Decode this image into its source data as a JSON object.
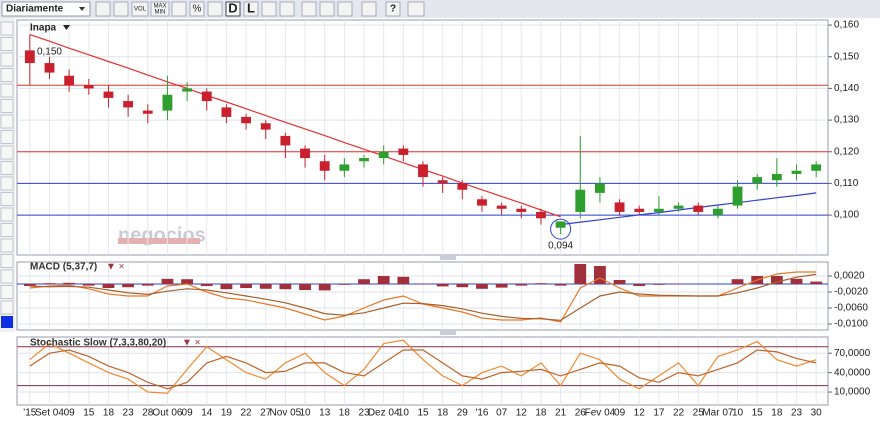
{
  "toolbar": {
    "period": "Diariamente",
    "buttons": [
      "VOL",
      "MAX",
      "MIN",
      "D",
      "L"
    ]
  },
  "watermark": "negocios",
  "chart_data": [
    {
      "type": "candlestick",
      "title": "Inapa",
      "categories": [
        "'15",
        "Set 04",
        "09",
        "15",
        "18",
        "23",
        "28",
        "Out 06",
        "09",
        "14",
        "19",
        "22",
        "27",
        "Nov 05",
        "10",
        "13",
        "18",
        "23",
        "Dez 04",
        "10",
        "15",
        "18",
        "29",
        "'16",
        "07",
        "12",
        "18",
        "21",
        "26",
        "Fev 04",
        "09",
        "12",
        "17",
        "22",
        "25",
        "Mar 07",
        "10",
        "15",
        "18",
        "23",
        "30"
      ],
      "open": [
        0.152,
        0.148,
        0.144,
        0.141,
        0.139,
        0.136,
        0.133,
        0.133,
        0.139,
        0.139,
        0.134,
        0.131,
        0.129,
        0.125,
        0.121,
        0.117,
        0.114,
        0.117,
        0.118,
        0.121,
        0.116,
        0.111,
        0.11,
        0.105,
        0.103,
        0.102,
        0.101,
        0.096,
        0.101,
        0.107,
        0.104,
        0.102,
        0.101,
        0.102,
        0.103,
        0.1,
        0.103,
        0.11,
        0.111,
        0.113,
        0.114
      ],
      "high": [
        0.157,
        0.15,
        0.146,
        0.143,
        0.141,
        0.138,
        0.135,
        0.144,
        0.142,
        0.14,
        0.135,
        0.132,
        0.13,
        0.126,
        0.122,
        0.119,
        0.118,
        0.119,
        0.122,
        0.122,
        0.117,
        0.112,
        0.111,
        0.106,
        0.104,
        0.103,
        0.102,
        0.098,
        0.125,
        0.112,
        0.105,
        0.103,
        0.106,
        0.104,
        0.104,
        0.103,
        0.111,
        0.113,
        0.118,
        0.116,
        0.117
      ],
      "low": [
        0.141,
        0.143,
        0.139,
        0.138,
        0.134,
        0.131,
        0.129,
        0.13,
        0.136,
        0.133,
        0.129,
        0.127,
        0.124,
        0.118,
        0.115,
        0.111,
        0.112,
        0.115,
        0.116,
        0.117,
        0.109,
        0.107,
        0.105,
        0.101,
        0.1,
        0.099,
        0.097,
        0.094,
        0.099,
        0.104,
        0.1,
        0.1,
        0.1,
        0.101,
        0.1,
        0.099,
        0.102,
        0.108,
        0.109,
        0.111,
        0.112
      ],
      "close": [
        0.148,
        0.145,
        0.141,
        0.14,
        0.137,
        0.134,
        0.132,
        0.138,
        0.14,
        0.136,
        0.131,
        0.129,
        0.127,
        0.122,
        0.118,
        0.114,
        0.116,
        0.118,
        0.12,
        0.119,
        0.112,
        0.11,
        0.108,
        0.103,
        0.102,
        0.101,
        0.099,
        0.098,
        0.108,
        0.11,
        0.101,
        0.101,
        0.102,
        0.103,
        0.101,
        0.102,
        0.109,
        0.112,
        0.113,
        0.114,
        0.116
      ],
      "up_color": "#2e9e2e",
      "down_color": "#c8202c",
      "trendlines": [
        {
          "color": "#e83030",
          "values": [
            0.157,
            0.1549,
            0.1527,
            0.1506,
            0.1485,
            0.1464,
            0.1442,
            0.1421,
            0.14,
            0.1378,
            0.1357,
            0.1336,
            0.1314,
            0.1293,
            0.1272,
            0.1251,
            0.1229,
            0.1208,
            0.1187,
            0.1165,
            0.1144,
            0.1123,
            0.1101,
            0.108,
            0.1059,
            0.1038,
            0.1016,
            0.0995,
            null,
            null,
            null,
            null,
            null,
            null,
            null,
            null,
            null,
            null,
            null,
            null,
            null
          ]
        },
        {
          "color": "#3040d0",
          "values": [
            null,
            null,
            null,
            null,
            null,
            null,
            null,
            null,
            null,
            null,
            null,
            null,
            null,
            null,
            null,
            null,
            null,
            null,
            null,
            null,
            null,
            null,
            null,
            null,
            null,
            null,
            null,
            0.097,
            0.0978,
            0.0985,
            0.0993,
            0.1001,
            0.1008,
            0.1016,
            0.1024,
            0.1032,
            0.1039,
            0.1047,
            0.1055,
            0.1062,
            0.107
          ]
        }
      ],
      "levels": [
        {
          "value": 0.141,
          "color": "#e83030"
        },
        {
          "value": 0.12,
          "color": "#e83030"
        },
        {
          "value": 0.11,
          "color": "#3040d0"
        },
        {
          "value": 0.1,
          "color": "#3040d0"
        }
      ],
      "annotations": [
        {
          "value": 0.15,
          "label": "0,150"
        },
        {
          "value": 0.094,
          "label": "0,094"
        }
      ],
      "ylim": [
        0.0874,
        0.1616
      ],
      "yticks": [
        {
          "value": 0.16,
          "label": "0,160"
        },
        {
          "value": 0.15,
          "label": "0,150"
        },
        {
          "value": 0.14,
          "label": "0,140"
        },
        {
          "value": 0.13,
          "label": "0,130"
        },
        {
          "value": 0.12,
          "label": "0,120"
        },
        {
          "value": 0.11,
          "label": "0,110"
        },
        {
          "value": 0.1,
          "label": "0,100"
        }
      ],
      "grid": true
    },
    {
      "type": "macd",
      "title": "MACD (5,37,7)",
      "histogram": [
        -0.0005,
        0.0002,
        0.0003,
        -0.0004,
        -0.001,
        -0.0008,
        -0.0004,
        0.0013,
        0.0012,
        -0.0005,
        -0.0013,
        -0.001,
        -0.0012,
        -0.0013,
        -0.0015,
        -0.0016,
        -0.0002,
        0.0012,
        0.002,
        0.0018,
        -0.0001,
        -0.0006,
        -0.0008,
        -0.0012,
        -0.0009,
        -0.0004,
        0.0002,
        -0.0004,
        0.005,
        0.0045,
        0.001,
        -0.0005,
        -0.0002,
        -0.0001,
        0,
        0,
        0.0012,
        0.002,
        0.002,
        0.0013,
        0.0006
      ],
      "histogram_color": "#a0303c",
      "zero_color": "#3040d0",
      "series": [
        {
          "color": "#e8782a",
          "values": [
            -0.001,
            -0.0005,
            -0.0003,
            -0.0012,
            -0.0025,
            -0.003,
            -0.003,
            -0.0005,
            0.0,
            -0.002,
            -0.0035,
            -0.004,
            -0.005,
            -0.006,
            -0.0075,
            -0.009,
            -0.008,
            -0.006,
            -0.004,
            -0.003,
            -0.005,
            -0.006,
            -0.007,
            -0.0085,
            -0.009,
            -0.009,
            -0.0085,
            -0.0095,
            -0.001,
            0.0015,
            -0.001,
            -0.003,
            -0.003,
            -0.003,
            -0.003,
            -0.003,
            -0.001,
            0.001,
            0.0025,
            0.003,
            0.003
          ]
        },
        {
          "color": "#a8602a",
          "values": [
            -0.0005,
            -0.0007,
            -0.0006,
            -0.0008,
            -0.0015,
            -0.0022,
            -0.0026,
            -0.0018,
            -0.0012,
            -0.0015,
            -0.0022,
            -0.003,
            -0.0038,
            -0.0047,
            -0.006,
            -0.0074,
            -0.0078,
            -0.0072,
            -0.006,
            -0.0048,
            -0.0049,
            -0.0054,
            -0.0062,
            -0.0073,
            -0.0081,
            -0.0086,
            -0.0087,
            -0.0091,
            -0.006,
            -0.003,
            -0.002,
            -0.0025,
            -0.0028,
            -0.0029,
            -0.003,
            -0.003,
            -0.0022,
            -0.001,
            0.0005,
            0.0017,
            0.0024
          ]
        }
      ],
      "ylim": [
        -0.0115,
        0.0055
      ],
      "yticks": [
        {
          "value": 0.002,
          "label": "0,0020"
        },
        {
          "value": -0.002,
          "label": "-0,0020"
        },
        {
          "value": -0.006,
          "label": "-0,0060"
        },
        {
          "value": -0.01,
          "label": "-0,0100"
        }
      ]
    },
    {
      "type": "stochastic",
      "title": "Stochastic Slow (7,3,3,80,20)",
      "levels": [
        80,
        20
      ],
      "level_color": "#803048",
      "series": [
        {
          "color": "#f08a30",
          "values": [
            60,
            85,
            70,
            55,
            40,
            30,
            10,
            8,
            45,
            80,
            60,
            40,
            30,
            55,
            70,
            40,
            20,
            45,
            85,
            90,
            60,
            35,
            20,
            40,
            50,
            35,
            55,
            20,
            70,
            60,
            30,
            15,
            35,
            55,
            20,
            65,
            75,
            88,
            60,
            50,
            60
          ]
        },
        {
          "color": "#c0642a",
          "values": [
            50,
            70,
            75,
            65,
            50,
            40,
            25,
            15,
            25,
            55,
            65,
            55,
            40,
            42,
            55,
            55,
            40,
            35,
            55,
            75,
            75,
            55,
            35,
            30,
            40,
            42,
            45,
            35,
            45,
            55,
            50,
            32,
            25,
            40,
            35,
            45,
            55,
            75,
            72,
            62,
            55
          ]
        }
      ],
      "ylim": [
        -10,
        95
      ],
      "yticks": [
        {
          "value": 70,
          "label": "70,0000"
        },
        {
          "value": 40,
          "label": "40,0000"
        },
        {
          "value": 10,
          "label": "10,0000"
        }
      ]
    }
  ]
}
